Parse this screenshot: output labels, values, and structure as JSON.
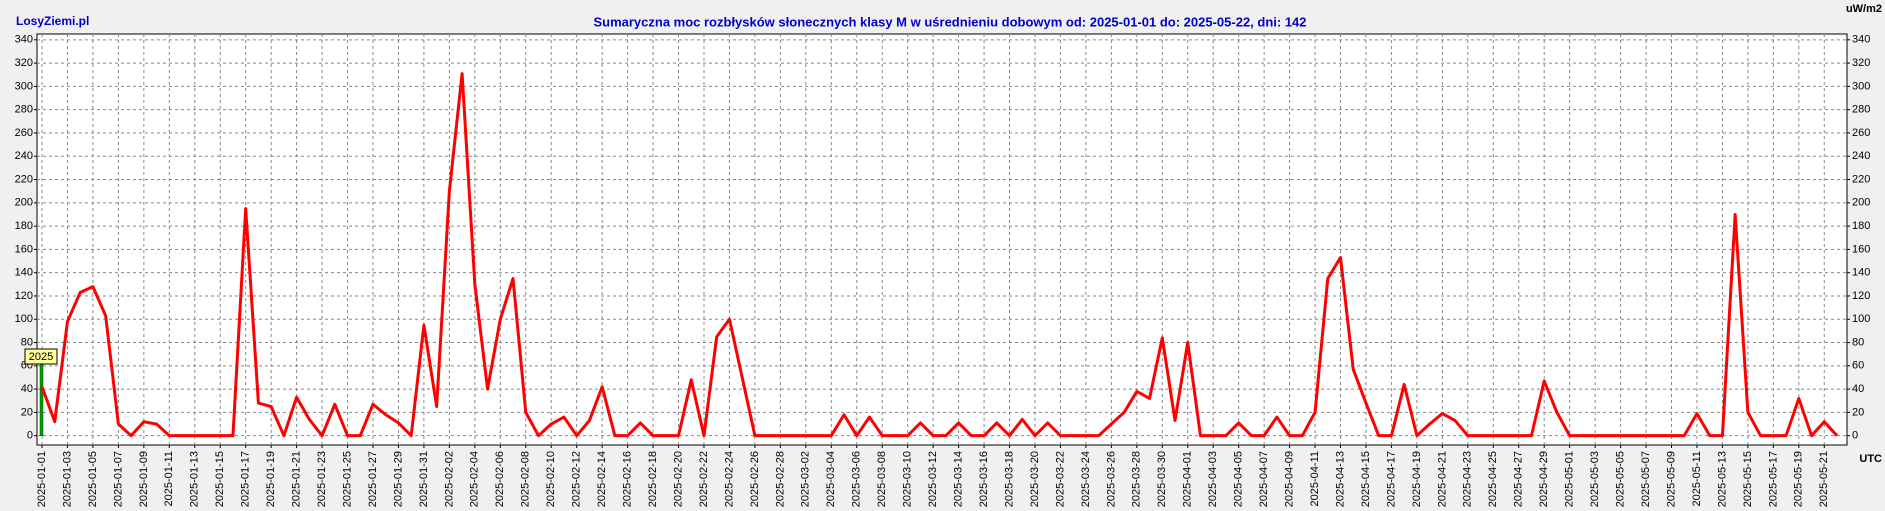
{
  "chart_data": {
    "type": "line",
    "site": "LosyZiemi.pl",
    "title": "Sumaryczna moc rozbłysków słonecznych klasy M w uśrednieniu dobowym od: 2025-01-01 do: 2025-05-22, dni: 142",
    "y_unit": "uW/m2",
    "x_unit": "UTC",
    "year_marker": "2025",
    "categories": [
      "2025-01-01",
      null,
      "2025-01-03",
      null,
      "2025-01-05",
      null,
      "2025-01-07",
      null,
      "2025-01-09",
      null,
      "2025-01-11",
      null,
      "2025-01-13",
      null,
      "2025-01-15",
      null,
      "2025-01-17",
      null,
      "2025-01-19",
      null,
      "2025-01-21",
      null,
      "2025-01-23",
      null,
      "2025-01-25",
      null,
      "2025-01-27",
      null,
      "2025-01-29",
      null,
      "2025-01-31",
      null,
      "2025-02-02",
      null,
      "2025-02-04",
      null,
      "2025-02-06",
      null,
      "2025-02-08",
      null,
      "2025-02-10",
      null,
      "2025-02-12",
      null,
      "2025-02-14",
      null,
      "2025-02-16",
      null,
      "2025-02-18",
      null,
      "2025-02-20",
      null,
      "2025-02-22",
      null,
      "2025-02-24",
      null,
      "2025-02-26",
      null,
      "2025-02-28",
      null,
      "2025-03-02",
      null,
      "2025-03-04",
      null,
      "2025-03-06",
      null,
      "2025-03-08",
      null,
      "2025-03-10",
      null,
      "2025-03-12",
      null,
      "2025-03-14",
      null,
      "2025-03-16",
      null,
      "2025-03-18",
      null,
      "2025-03-20",
      null,
      "2025-03-22",
      null,
      "2025-03-24",
      null,
      "2025-03-26",
      null,
      "2025-03-28",
      null,
      "2025-03-30",
      null,
      "2025-04-01",
      null,
      "2025-04-03",
      null,
      "2025-04-05",
      null,
      "2025-04-07",
      null,
      "2025-04-09",
      null,
      "2025-04-11",
      null,
      "2025-04-13",
      null,
      "2025-04-15",
      null,
      "2025-04-17",
      null,
      "2025-04-19",
      null,
      "2025-04-21",
      null,
      "2025-04-23",
      null,
      "2025-04-25",
      null,
      "2025-04-27",
      null,
      "2025-04-29",
      null,
      "2025-05-01",
      null,
      "2025-05-03",
      null,
      "2025-05-05",
      null,
      "2025-05-07",
      null,
      "2025-05-09",
      null,
      "2025-05-11",
      null,
      "2025-05-13",
      null,
      "2025-05-15",
      null,
      "2025-05-17",
      null,
      "2025-05-19",
      null,
      "2025-05-21",
      null
    ],
    "series": [
      {
        "name": "M",
        "color": "#ff0000",
        "values": [
          42,
          12,
          98,
          123,
          128,
          103,
          10,
          0,
          12,
          10,
          0,
          0,
          0,
          0,
          0,
          0,
          195,
          28,
          25,
          0,
          33,
          14,
          0,
          27,
          0,
          0,
          27,
          18,
          11,
          0,
          95,
          25,
          210,
          311,
          130,
          40,
          100,
          135,
          20,
          0,
          10,
          16,
          0,
          13,
          42,
          0,
          0,
          11,
          0,
          0,
          0,
          48,
          0,
          85,
          100,
          50,
          0,
          0,
          0,
          0,
          0,
          0,
          0,
          18,
          0,
          16,
          0,
          0,
          0,
          11,
          0,
          0,
          11,
          0,
          0,
          11,
          0,
          14,
          0,
          11,
          0,
          0,
          0,
          0,
          10,
          20,
          38,
          32,
          84,
          13,
          80,
          0,
          0,
          0,
          11,
          0,
          0,
          16,
          0,
          0,
          20,
          135,
          153,
          57,
          28,
          0,
          0,
          44,
          0,
          10,
          19,
          13,
          0,
          0,
          0,
          0,
          0,
          0,
          47,
          20,
          0,
          0,
          0,
          0,
          0,
          0,
          0,
          0,
          0,
          0,
          19,
          0,
          0,
          190,
          20,
          0,
          0,
          0,
          32,
          0,
          12,
          0
        ]
      }
    ],
    "ylim": [
      -8,
      345
    ],
    "yticks": [
      0,
      20,
      40,
      60,
      80,
      100,
      120,
      140,
      160,
      180,
      200,
      220,
      240,
      260,
      280,
      300,
      320,
      340
    ],
    "grid": true
  }
}
